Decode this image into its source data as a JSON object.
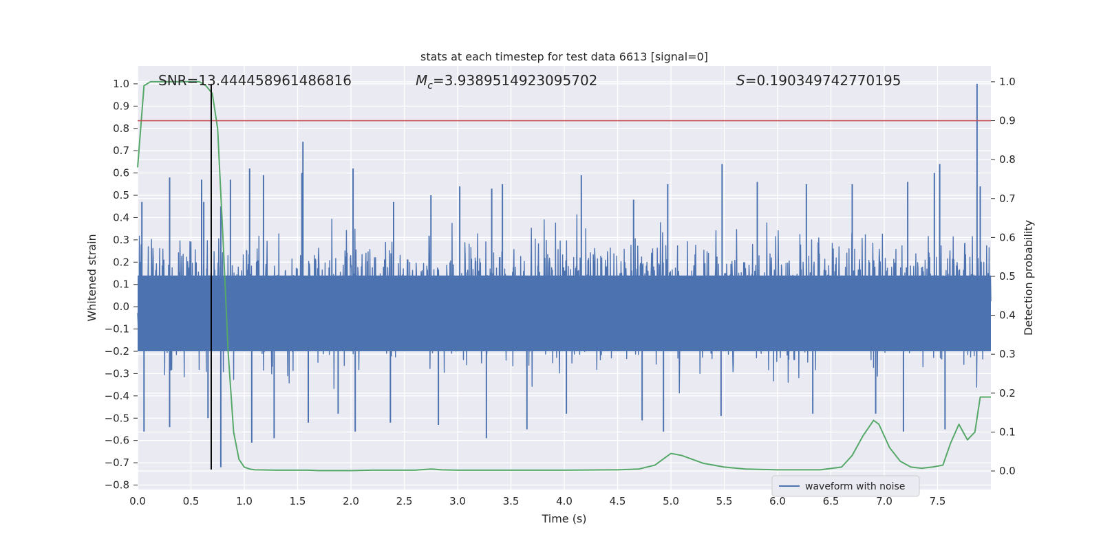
{
  "chart_data": {
    "type": "line",
    "title": "stats at each timestep for test data 6613 [signal=0]",
    "xlabel": "Time (s)",
    "ylabel": "Whitened strain",
    "y2label": "Detection probability",
    "xlim": [
      0.0,
      8.0
    ],
    "ylim": [
      -0.82,
      1.08
    ],
    "y2lim": [
      -0.04762,
      1.0405
    ],
    "x_ticks": [
      0.0,
      0.5,
      1.0,
      1.5,
      2.0,
      2.5,
      3.0,
      3.5,
      4.0,
      4.5,
      5.0,
      5.5,
      6.0,
      6.5,
      7.0,
      7.5
    ],
    "x_tick_labels": [
      "0.0",
      "0.5",
      "1.0",
      "1.5",
      "2.0",
      "2.5",
      "3.0",
      "3.5",
      "4.0",
      "4.5",
      "5.0",
      "5.5",
      "6.0",
      "6.5",
      "7.0",
      "7.5"
    ],
    "y_ticks": [
      -0.8,
      -0.7,
      -0.6,
      -0.5,
      -0.4,
      -0.3,
      -0.2,
      -0.1,
      0.0,
      0.1,
      0.2,
      0.3,
      0.4,
      0.5,
      0.6,
      0.7,
      0.8,
      0.9,
      1.0
    ],
    "y_tick_labels": [
      "−0.8",
      "−0.7",
      "−0.6",
      "−0.5",
      "−0.4",
      "−0.3",
      "−0.2",
      "−0.1",
      "0.0",
      "0.1",
      "0.2",
      "0.3",
      "0.4",
      "0.5",
      "0.6",
      "0.7",
      "0.8",
      "0.9",
      "1.0"
    ],
    "y2_ticks": [
      0.0,
      0.1,
      0.2,
      0.3,
      0.4,
      0.5,
      0.6,
      0.7,
      0.8,
      0.9,
      1.0
    ],
    "y2_tick_labels": [
      "0.0",
      "0.1",
      "0.2",
      "0.3",
      "0.4",
      "0.5",
      "0.6",
      "0.7",
      "0.8",
      "0.9",
      "1.0"
    ],
    "annotations": {
      "snr": "SNR=13.444458961486816",
      "mc_symbol": "M",
      "mc_sub": "c",
      "mc_value": "=3.9389514923095702",
      "s_symbol": "S",
      "s_value": "=0.190349742770195"
    },
    "threshold": {
      "axis": "right",
      "value": 0.9,
      "color": "#c44e52"
    },
    "event_time": 0.69,
    "event_line": {
      "x": 0.69,
      "y_top": 1.0,
      "y_bottom": -0.73,
      "color": "#000000"
    },
    "grid": true,
    "background": "#eaeaf2",
    "legend": {
      "location": "lower-right",
      "entries": [
        "waveform with noise"
      ]
    },
    "series": [
      {
        "name": "waveform with noise",
        "color": "#4c72b0",
        "axis": "left",
        "note_values": "dense noise, band approx -0.3..0.35 with spikes up to 1.0 at t=7.87",
        "spikes_up": [
          [
            0.04,
            0.47
          ],
          [
            0.3,
            0.58
          ],
          [
            0.6,
            0.57
          ],
          [
            0.62,
            0.47
          ],
          [
            0.78,
            0.45
          ],
          [
            0.87,
            0.57
          ],
          [
            1.05,
            0.62
          ],
          [
            1.18,
            0.59
          ],
          [
            1.55,
            0.74
          ],
          [
            1.54,
            0.6
          ],
          [
            2.02,
            0.62
          ],
          [
            2.4,
            0.47
          ],
          [
            2.75,
            0.5
          ],
          [
            3.02,
            0.54
          ],
          [
            3.32,
            0.53
          ],
          [
            3.42,
            0.55
          ],
          [
            4.16,
            0.59
          ],
          [
            4.65,
            0.48
          ],
          [
            4.97,
            0.55
          ],
          [
            5.48,
            0.64
          ],
          [
            5.81,
            0.56
          ],
          [
            6.27,
            0.55
          ],
          [
            6.7,
            0.55
          ],
          [
            7.22,
            0.56
          ],
          [
            7.52,
            0.64
          ],
          [
            7.47,
            0.6
          ],
          [
            7.87,
            1.0
          ],
          [
            7.9,
            0.54
          ]
        ],
        "spikes_down": [
          [
            0.06,
            -0.56
          ],
          [
            0.3,
            -0.54
          ],
          [
            0.66,
            -0.5
          ],
          [
            0.78,
            -0.72
          ],
          [
            1.07,
            -0.61
          ],
          [
            1.28,
            -0.59
          ],
          [
            1.6,
            -0.52
          ],
          [
            1.88,
            -0.48
          ],
          [
            2.04,
            -0.56
          ],
          [
            2.37,
            -0.52
          ],
          [
            2.82,
            -0.53
          ],
          [
            3.27,
            -0.59
          ],
          [
            3.65,
            -0.55
          ],
          [
            4.02,
            -0.48
          ],
          [
            4.73,
            -0.51
          ],
          [
            4.93,
            -0.56
          ],
          [
            5.47,
            -0.49
          ],
          [
            6.33,
            -0.48
          ],
          [
            6.92,
            -0.48
          ],
          [
            7.18,
            -0.56
          ],
          [
            7.57,
            -0.55
          ]
        ]
      },
      {
        "name": "",
        "color": "#55a868",
        "axis": "right",
        "x": [
          0.0,
          0.06,
          0.12,
          0.2,
          0.3,
          0.4,
          0.5,
          0.58,
          0.64,
          0.7,
          0.75,
          0.8,
          0.85,
          0.9,
          0.95,
          1.0,
          1.05,
          1.1,
          1.3,
          1.5,
          1.6,
          1.7,
          1.8,
          2.0,
          2.2,
          2.4,
          2.6,
          2.75,
          2.85,
          3.0,
          3.5,
          3.8,
          4.0,
          4.5,
          4.7,
          4.85,
          4.95,
          5.0,
          5.1,
          5.2,
          5.3,
          5.5,
          5.7,
          6.0,
          6.4,
          6.6,
          6.7,
          6.8,
          6.9,
          6.95,
          7.05,
          7.15,
          7.25,
          7.35,
          7.45,
          7.55,
          7.62,
          7.7,
          7.78,
          7.85,
          7.9,
          7.95,
          8.0
        ],
        "values": [
          0.78,
          0.99,
          1.0,
          1.0,
          1.0,
          1.0,
          1.0,
          1.0,
          0.99,
          0.97,
          0.88,
          0.6,
          0.3,
          0.1,
          0.03,
          0.01,
          0.005,
          0.003,
          0.002,
          0.002,
          0.002,
          0.001,
          0.001,
          0.001,
          0.002,
          0.002,
          0.002,
          0.005,
          0.003,
          0.002,
          0.002,
          0.002,
          0.002,
          0.003,
          0.005,
          0.015,
          0.035,
          0.045,
          0.04,
          0.03,
          0.02,
          0.01,
          0.005,
          0.003,
          0.003,
          0.01,
          0.04,
          0.09,
          0.13,
          0.12,
          0.06,
          0.025,
          0.01,
          0.007,
          0.01,
          0.015,
          0.07,
          0.12,
          0.08,
          0.1,
          0.19,
          0.19,
          0.19
        ]
      }
    ]
  }
}
